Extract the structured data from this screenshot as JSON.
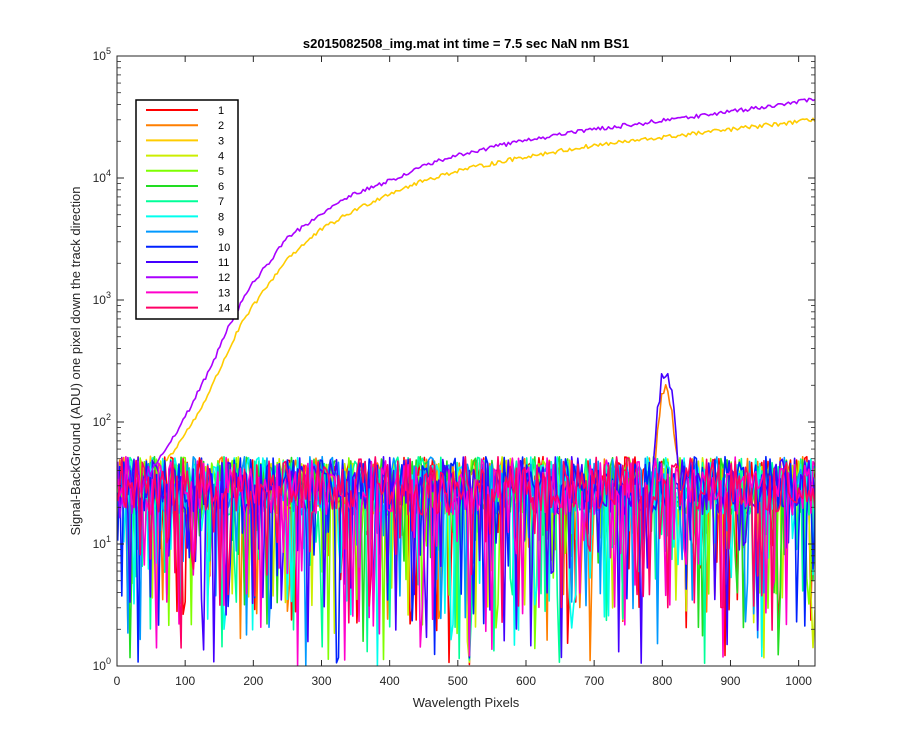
{
  "chart_data": {
    "type": "line",
    "title": "s2015082508_img.mat int time = 7.5 sec  NaN nm BS1",
    "xlabel": "Wavelength Pixels",
    "ylabel": "Signal-BackGround (ADU) one pixel down the track direction",
    "xlim": [
      0,
      1024
    ],
    "ylim": [
      1,
      100000
    ],
    "yscale": "log",
    "x_ticks": [
      "0",
      "100",
      "200",
      "300",
      "400",
      "500",
      "600",
      "700",
      "800",
      "900",
      "1000"
    ],
    "y_ticks": [
      {
        "base": "10",
        "exp": "0"
      },
      {
        "base": "10",
        "exp": "1"
      },
      {
        "base": "10",
        "exp": "2"
      },
      {
        "base": "10",
        "exp": "3"
      },
      {
        "base": "10",
        "exp": "4"
      },
      {
        "base": "10",
        "exp": "5"
      }
    ],
    "grid": false,
    "legend_position": "top-left",
    "noise_floor": {
      "mean": 30,
      "max": 100,
      "min": 1
    },
    "series": [
      {
        "name": "1",
        "color": "#ff0000",
        "profile": "noise"
      },
      {
        "name": "2",
        "color": "#ff7f00",
        "profile": "noise",
        "bump_peak": 180
      },
      {
        "name": "3",
        "color": "#ffcc00",
        "profile": "rising",
        "x": [
          60,
          80,
          100,
          120,
          140,
          160,
          180,
          200,
          250,
          300,
          350,
          400,
          450,
          500,
          600,
          700,
          800,
          900,
          1000,
          1024
        ],
        "y": [
          40,
          55,
          80,
          120,
          200,
          350,
          600,
          900,
          2200,
          3800,
          5500,
          7500,
          9500,
          11500,
          15000,
          18500,
          21500,
          25000,
          29000,
          30000
        ]
      },
      {
        "name": "4",
        "color": "#ccee00",
        "profile": "noise"
      },
      {
        "name": "5",
        "color": "#7fff00",
        "profile": "noise"
      },
      {
        "name": "6",
        "color": "#22dd22",
        "profile": "noise"
      },
      {
        "name": "7",
        "color": "#00ff99",
        "profile": "noise"
      },
      {
        "name": "8",
        "color": "#00ffee",
        "profile": "noise"
      },
      {
        "name": "9",
        "color": "#0099ff",
        "profile": "noise"
      },
      {
        "name": "10",
        "color": "#0022ff",
        "profile": "noise"
      },
      {
        "name": "11",
        "color": "#4400ff",
        "profile": "noise",
        "bump_peak": 260
      },
      {
        "name": "12",
        "color": "#aa00ff",
        "profile": "rising",
        "x": [
          50,
          80,
          100,
          120,
          140,
          160,
          180,
          200,
          250,
          300,
          350,
          400,
          450,
          500,
          600,
          700,
          800,
          900,
          1000,
          1024
        ],
        "y": [
          40,
          70,
          110,
          180,
          300,
          550,
          900,
          1400,
          3200,
          5200,
          7500,
          9500,
          12500,
          15500,
          20500,
          25000,
          29500,
          35000,
          42000,
          45000
        ]
      },
      {
        "name": "13",
        "color": "#ff00cc",
        "profile": "noise"
      },
      {
        "name": "14",
        "color": "#ff0066",
        "profile": "noise"
      }
    ]
  }
}
